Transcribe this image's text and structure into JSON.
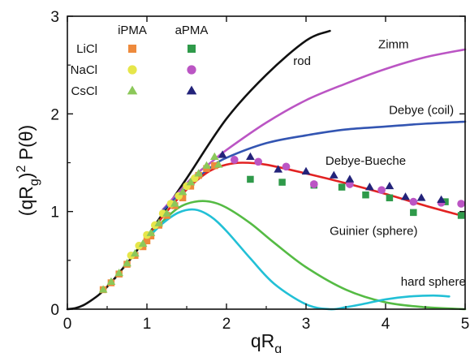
{
  "chart_data": {
    "type": "line",
    "xlabel": "qR",
    "xlabel_sub": "g",
    "ylabel_parts": [
      "(qR",
      "g",
      ")",
      "2",
      " P(θ)"
    ],
    "xlim": [
      0,
      5
    ],
    "ylim": [
      0,
      3
    ],
    "xticks": [
      0,
      1,
      2,
      3,
      4,
      5
    ],
    "yticks": [
      0,
      1,
      2,
      3
    ],
    "grid": false,
    "legend": {
      "placement": "top-left",
      "column_headers": [
        "iPMA",
        "aPMA"
      ],
      "rows": [
        {
          "salt": "LiCl",
          "ipma_marker": "square",
          "ipma_color": "#ee8a3c",
          "apma_marker": "square",
          "apma_color": "#2f9a4a"
        },
        {
          "salt": "NaCl",
          "ipma_marker": "circle",
          "ipma_color": "#e6e64a",
          "apma_marker": "circle",
          "apma_color": "#bb55c4"
        },
        {
          "salt": "CsCl",
          "ipma_marker": "triangle",
          "ipma_color": "#8cc85a",
          "apma_marker": "triangle",
          "apma_color": "#23237a"
        }
      ]
    },
    "curves": [
      {
        "name": "rod",
        "color": "#111111",
        "x": [
          0,
          0.1,
          0.2,
          0.3,
          0.4,
          0.5,
          0.6,
          0.7,
          0.8,
          0.9,
          1.0,
          1.2,
          1.5,
          2.0,
          2.5,
          3.0,
          3.3
        ],
        "y": [
          0,
          0.01,
          0.04,
          0.09,
          0.15,
          0.23,
          0.32,
          0.42,
          0.52,
          0.63,
          0.74,
          0.98,
          1.34,
          1.95,
          2.4,
          2.75,
          2.85
        ]
      },
      {
        "name": "Zimm",
        "color": "#bb55c4",
        "x": [
          1.2,
          1.4,
          1.6,
          1.8,
          2.0,
          2.5,
          3.0,
          3.5,
          4.0,
          4.5,
          5.0
        ],
        "y": [
          1.02,
          1.2,
          1.37,
          1.5,
          1.63,
          1.91,
          2.14,
          2.31,
          2.46,
          2.58,
          2.66
        ]
      },
      {
        "name": "Debye (coil)",
        "color": "#3355b2",
        "x": [
          1.2,
          1.4,
          1.6,
          1.8,
          2.0,
          2.5,
          3.0,
          3.5,
          4.0,
          4.5,
          5.0
        ],
        "y": [
          1.01,
          1.17,
          1.32,
          1.45,
          1.55,
          1.7,
          1.78,
          1.84,
          1.87,
          1.9,
          1.92
        ]
      },
      {
        "name": "Debye-Bueche",
        "color": "#e22222",
        "x": [
          1.0,
          1.2,
          1.4,
          1.6,
          1.8,
          2.0,
          2.2,
          2.5,
          3.0,
          3.5,
          4.0,
          4.5,
          4.9
        ],
        "y": [
          0.73,
          0.95,
          1.14,
          1.3,
          1.42,
          1.48,
          1.5,
          1.48,
          1.39,
          1.29,
          1.18,
          1.06,
          0.97
        ]
      },
      {
        "name": "Guinier (sphere)",
        "color": "#55bb44",
        "x": [
          1.0,
          1.2,
          1.4,
          1.6,
          1.8,
          2.0,
          2.3,
          2.6,
          3.0,
          3.5,
          4.0,
          4.5,
          5.0
        ],
        "y": [
          0.72,
          0.9,
          1.04,
          1.1,
          1.1,
          1.04,
          0.88,
          0.68,
          0.43,
          0.2,
          0.07,
          0.02,
          0.0
        ]
      },
      {
        "name": "hard sphere",
        "color": "#22c0d6",
        "x": [
          1.0,
          1.2,
          1.4,
          1.6,
          1.8,
          2.0,
          2.3,
          2.6,
          3.0,
          3.3,
          3.5,
          3.7,
          4.0,
          4.3,
          4.6,
          4.8
        ],
        "y": [
          0.72,
          0.88,
          0.99,
          1.02,
          0.95,
          0.8,
          0.52,
          0.26,
          0.05,
          0.0,
          0.02,
          0.05,
          0.1,
          0.13,
          0.14,
          0.13
        ]
      }
    ],
    "curve_labels": [
      {
        "text": "rod",
        "x": 2.95,
        "y": 2.5
      },
      {
        "text": "Zimm",
        "x": 4.1,
        "y": 2.67
      },
      {
        "text": "Debye (coil)",
        "x": 4.45,
        "y": 2.0
      },
      {
        "text": "Debye-Bueche",
        "x": 3.75,
        "y": 1.48
      },
      {
        "text": "Guinier (sphere)",
        "x": 3.85,
        "y": 0.76
      },
      {
        "text": "hard sphere",
        "x": 4.6,
        "y": 0.24
      }
    ],
    "series": [
      {
        "salt": "LiCl",
        "polymer": "iPMA",
        "marker": "square",
        "color": "#ee8a3c",
        "x": [
          0.45,
          0.55,
          0.65,
          0.75,
          0.85,
          0.95,
          1.0,
          1.05,
          1.15,
          1.25,
          1.35,
          1.45,
          1.55,
          1.65,
          1.75,
          1.85
        ],
        "y": [
          0.2,
          0.27,
          0.36,
          0.46,
          0.55,
          0.64,
          0.7,
          0.75,
          0.86,
          0.96,
          1.06,
          1.14,
          1.26,
          1.37,
          1.44,
          1.47
        ]
      },
      {
        "salt": "NaCl",
        "polymer": "iPMA",
        "marker": "circle",
        "color": "#e6e64a",
        "x": [
          0.8,
          0.9,
          1.0,
          1.1,
          1.2,
          1.3,
          1.4,
          1.5,
          1.6
        ],
        "y": [
          0.55,
          0.65,
          0.76,
          0.86,
          0.98,
          1.08,
          1.16,
          1.26,
          1.34
        ]
      },
      {
        "salt": "CsCl",
        "polymer": "iPMA",
        "marker": "triangle",
        "color": "#8cc85a",
        "x": [
          0.45,
          0.55,
          0.65,
          0.75,
          0.85,
          0.95,
          1.05,
          1.15,
          1.25,
          1.35,
          1.45,
          1.55,
          1.65,
          1.75,
          1.85,
          1.9
        ],
        "y": [
          0.2,
          0.28,
          0.37,
          0.47,
          0.57,
          0.67,
          0.78,
          0.88,
          0.98,
          1.08,
          1.2,
          1.3,
          1.39,
          1.47,
          1.56,
          1.48
        ]
      },
      {
        "salt": "LiCl",
        "polymer": "aPMA",
        "marker": "square",
        "color": "#2f9a4a",
        "x": [
          2.3,
          2.7,
          3.1,
          3.45,
          3.75,
          4.05,
          4.35,
          4.75,
          4.95
        ],
        "y": [
          1.33,
          1.3,
          1.27,
          1.25,
          1.17,
          1.14,
          0.99,
          1.1,
          0.96
        ]
      },
      {
        "salt": "NaCl",
        "polymer": "aPMA",
        "marker": "circle",
        "color": "#bb55c4",
        "x": [
          2.1,
          2.4,
          2.75,
          3.1,
          3.55,
          3.95,
          4.35,
          4.7,
          4.95
        ],
        "y": [
          1.53,
          1.51,
          1.46,
          1.28,
          1.28,
          1.22,
          1.1,
          1.09,
          1.08
        ]
      },
      {
        "salt": "CsCl",
        "polymer": "aPMA",
        "marker": "triangle",
        "color": "#23237a",
        "x": [
          1.95,
          2.3,
          2.65,
          3.0,
          3.35,
          3.55,
          3.8,
          4.05,
          4.25,
          4.45,
          4.7
        ],
        "y": [
          1.58,
          1.56,
          1.43,
          1.41,
          1.37,
          1.33,
          1.25,
          1.26,
          1.15,
          1.14,
          1.12
        ]
      }
    ]
  }
}
